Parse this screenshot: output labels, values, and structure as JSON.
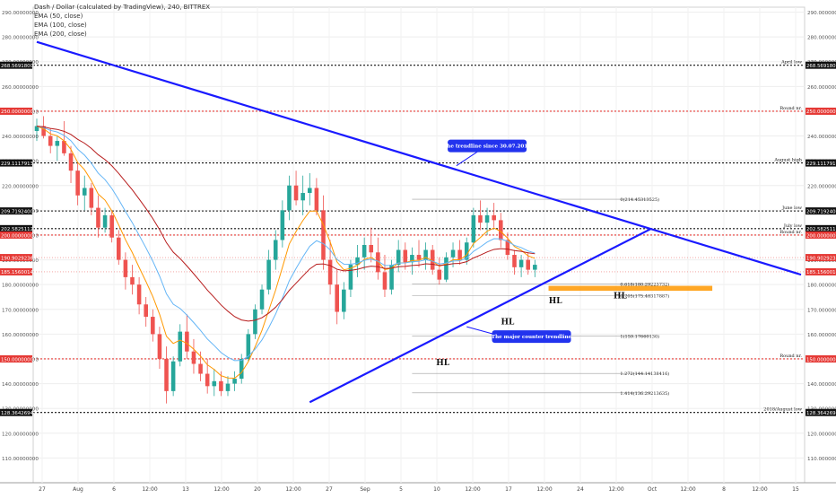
{
  "chart_data": {
    "type": "candlestick",
    "title": "Dash / Dollar (calculated by TradingView), 240, BITTREX",
    "indicators": [
      "EMA (50, close)",
      "EMA (100, close)",
      "EMA (200, close)"
    ],
    "ylim": [
      100,
      292
    ],
    "y_ticks": [
      110,
      120,
      130,
      140,
      150,
      160,
      170,
      180,
      190,
      200,
      210,
      220,
      230,
      240,
      250,
      260,
      270,
      280,
      290
    ],
    "tick_format": "{v}.00000000",
    "x_ticks": [
      "27",
      "Aug",
      "6",
      "12:00",
      "13",
      "12:00",
      "20",
      "12:00",
      "27",
      "Sep",
      "5",
      "10",
      "12:00",
      "17",
      "12:00",
      "24",
      "12:00",
      "Oct",
      "12:00",
      "8",
      "12:00",
      "15"
    ],
    "levels": [
      {
        "price": 268.56918,
        "price_label": "268.56918000",
        "label": "April low",
        "style": "black"
      },
      {
        "price": 250.0,
        "price_label": "250.00000000",
        "label": "Round nr.",
        "style": "red"
      },
      {
        "price": 229.11179132,
        "price_label": "229.11179132",
        "label": "August high",
        "style": "black"
      },
      {
        "price": 209.71924,
        "price_label": "209.71924000",
        "label": "June low",
        "style": "black"
      },
      {
        "price": 202.5825112,
        "price_label": "202.58251120",
        "label": "July low",
        "style": "black"
      },
      {
        "price": 200.0,
        "price_label": "200.00000000",
        "label": "Round nr.",
        "style": "red"
      },
      {
        "price": 150.0,
        "price_label": "150.00000000",
        "label": "Round nr.",
        "style": "red"
      },
      {
        "price": 128.36426944,
        "price_label": "128.36426944",
        "label": "2018/August low",
        "style": "black"
      }
    ],
    "price_tags": [
      {
        "price": 190.90292366,
        "text": "190.90292366",
        "color": "#e53935"
      },
      {
        "price": 185.15600142,
        "text": "185.15600142",
        "color": "#e53935"
      }
    ],
    "fib_levels": [
      {
        "price": 214.45313525,
        "text": "0(214.45313525)"
      },
      {
        "price": 180.29223732,
        "text": "0.618(180.29223732)"
      },
      {
        "price": 175.48317887,
        "text": "0.705(175.48317887)"
      },
      {
        "price": 159.1766013,
        "text": "1(159.17660130)"
      },
      {
        "price": 144.14138416,
        "text": "1.272(144.14138416)"
      },
      {
        "price": 136.29213635,
        "text": "1.414(136.29213635)"
      }
    ],
    "trendlines": [
      {
        "name": "downtrend",
        "from": [
          0,
          278.0
        ],
        "to": [
          112,
          184.0
        ]
      },
      {
        "name": "uptrend",
        "from": [
          40,
          132.5
        ],
        "to": [
          90,
          202.5
        ]
      }
    ],
    "callouts": [
      {
        "text": "The trendline since 30.07.2018",
        "at": [
          61.5,
          228.0
        ],
        "box_center": [
          66.0,
          236.0
        ]
      },
      {
        "text": "The major counter trendline",
        "at": [
          63.0,
          163.0
        ],
        "box_center": [
          72.5,
          159.0
        ]
      }
    ],
    "pattern_labels": [
      {
        "text": "HL",
        "at": [
          59.5,
          147.5
        ]
      },
      {
        "text": "HL",
        "at": [
          69.0,
          164.0
        ]
      },
      {
        "text": "HL",
        "at": [
          76.0,
          172.5
        ]
      },
      {
        "text": "HL",
        "at": [
          85.5,
          174.5
        ]
      }
    ],
    "support_zone": {
      "from_x": 75,
      "to_x": 99,
      "low": 177.5,
      "high": 179.5,
      "color": "#ff9800"
    },
    "ohlc": [
      [
        0,
        242,
        247,
        238,
        244
      ],
      [
        1,
        244,
        248,
        239,
        240
      ],
      [
        2,
        240,
        243,
        233,
        236
      ],
      [
        3,
        236,
        240,
        230,
        238
      ],
      [
        4,
        238,
        246,
        232,
        233
      ],
      [
        5,
        233,
        236,
        221,
        226
      ],
      [
        6,
        226,
        229,
        212,
        216
      ],
      [
        7,
        216,
        224,
        210,
        219
      ],
      [
        8,
        219,
        221,
        208,
        211
      ],
      [
        9,
        211,
        216,
        199,
        203
      ],
      [
        10,
        203,
        211,
        201,
        208
      ],
      [
        11,
        208,
        210,
        197,
        199
      ],
      [
        12,
        199,
        202,
        188,
        190
      ],
      [
        13,
        190,
        193,
        178,
        183
      ],
      [
        14,
        183,
        188,
        176,
        180
      ],
      [
        15,
        180,
        183,
        168,
        172
      ],
      [
        16,
        172,
        175,
        163,
        167
      ],
      [
        17,
        167,
        170,
        157,
        160
      ],
      [
        18,
        160,
        163,
        146,
        150
      ],
      [
        19,
        150,
        155,
        132,
        137
      ],
      [
        20,
        137,
        151,
        135,
        149
      ],
      [
        21,
        149,
        164,
        147,
        161
      ],
      [
        22,
        161,
        168,
        150,
        153
      ],
      [
        23,
        153,
        158,
        144,
        148
      ],
      [
        24,
        148,
        153,
        141,
        144
      ],
      [
        25,
        144,
        150,
        136,
        139
      ],
      [
        26,
        139,
        146,
        135,
        141
      ],
      [
        27,
        141,
        145,
        135,
        137
      ],
      [
        28,
        137,
        143,
        135,
        140
      ],
      [
        29,
        140,
        145,
        137,
        142
      ],
      [
        30,
        142,
        152,
        140,
        150
      ],
      [
        31,
        150,
        162,
        149,
        160
      ],
      [
        32,
        160,
        172,
        158,
        170
      ],
      [
        33,
        170,
        180,
        168,
        178
      ],
      [
        34,
        178,
        194,
        176,
        190
      ],
      [
        35,
        190,
        202,
        186,
        198
      ],
      [
        36,
        198,
        214,
        195,
        210
      ],
      [
        37,
        210,
        224,
        206,
        220
      ],
      [
        38,
        220,
        226,
        212,
        214
      ],
      [
        39,
        214,
        224,
        208,
        217
      ],
      [
        40,
        217,
        225,
        212,
        219
      ],
      [
        41,
        219,
        223,
        208,
        210
      ],
      [
        42,
        210,
        216,
        186,
        190
      ],
      [
        43,
        190,
        198,
        176,
        180
      ],
      [
        44,
        180,
        186,
        164,
        169
      ],
      [
        45,
        169,
        181,
        166,
        178
      ],
      [
        46,
        178,
        190,
        175,
        188
      ],
      [
        47,
        188,
        196,
        183,
        191
      ],
      [
        48,
        191,
        199,
        186,
        196
      ],
      [
        49,
        196,
        203,
        189,
        193
      ],
      [
        50,
        193,
        199,
        182,
        185
      ],
      [
        51,
        185,
        192,
        175,
        178
      ],
      [
        52,
        178,
        190,
        176,
        188
      ],
      [
        53,
        188,
        198,
        185,
        194
      ],
      [
        54,
        194,
        197,
        186,
        189
      ],
      [
        55,
        189,
        195,
        184,
        192
      ],
      [
        56,
        192,
        198,
        187,
        190
      ],
      [
        57,
        190,
        197,
        186,
        194
      ],
      [
        58,
        194,
        196,
        184,
        186
      ],
      [
        59,
        186,
        191,
        180,
        182
      ],
      [
        60,
        182,
        193,
        181,
        191
      ],
      [
        61,
        191,
        197,
        187,
        194
      ],
      [
        62,
        194,
        198,
        188,
        190
      ],
      [
        63,
        190,
        199,
        188,
        197
      ],
      [
        64,
        197,
        211,
        195,
        208
      ],
      [
        65,
        208,
        214,
        202,
        205
      ],
      [
        66,
        205,
        211,
        200,
        208
      ],
      [
        67,
        208,
        213,
        203,
        206
      ],
      [
        68,
        206,
        209,
        195,
        198
      ],
      [
        69,
        198,
        201,
        190,
        192
      ],
      [
        70,
        192,
        194,
        184,
        187
      ],
      [
        71,
        187,
        192,
        183,
        190
      ],
      [
        72,
        190,
        193,
        184,
        186
      ],
      [
        73,
        186,
        190,
        183,
        188
      ]
    ],
    "x_max": 112,
    "grid": true,
    "legend_position": "top-left"
  }
}
